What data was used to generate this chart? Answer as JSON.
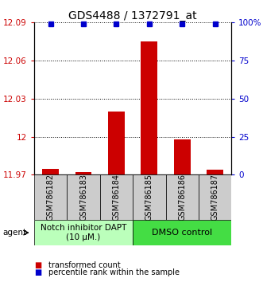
{
  "title": "GDS4488 / 1372791_at",
  "samples": [
    "GSM786182",
    "GSM786183",
    "GSM786184",
    "GSM786185",
    "GSM786186",
    "GSM786187"
  ],
  "bar_values": [
    11.975,
    11.972,
    12.02,
    12.075,
    11.998,
    11.974
  ],
  "percentile_values": [
    99,
    99,
    99,
    99,
    99,
    99
  ],
  "ylim_left": [
    11.97,
    12.09
  ],
  "ylim_right": [
    0,
    100
  ],
  "yticks_left": [
    11.97,
    12.0,
    12.03,
    12.06,
    12.09
  ],
  "ytick_labels_left": [
    "11.97",
    "12",
    "12.03",
    "12.06",
    "12.09"
  ],
  "yticks_right": [
    0,
    25,
    50,
    75,
    100
  ],
  "ytick_labels_right": [
    "0",
    "25",
    "50",
    "75",
    "100%"
  ],
  "bar_color": "#cc0000",
  "dot_color": "#0000cc",
  "bar_baseline": 11.97,
  "group1_label": "Notch inhibitor DAPT\n(10 μM.)",
  "group2_label": "DMSO control",
  "group1_indices": [
    0,
    1,
    2
  ],
  "group2_indices": [
    3,
    4,
    5
  ],
  "group_color1": "#bbffbb",
  "group_color2": "#44dd44",
  "sample_box_color": "#cccccc",
  "agent_label": "agent",
  "legend_bar_label": "transformed count",
  "legend_dot_label": "percentile rank within the sample",
  "title_fontsize": 10,
  "tick_fontsize": 7.5,
  "sample_fontsize": 7,
  "group_fontsize": 7.5,
  "legend_fontsize": 7
}
